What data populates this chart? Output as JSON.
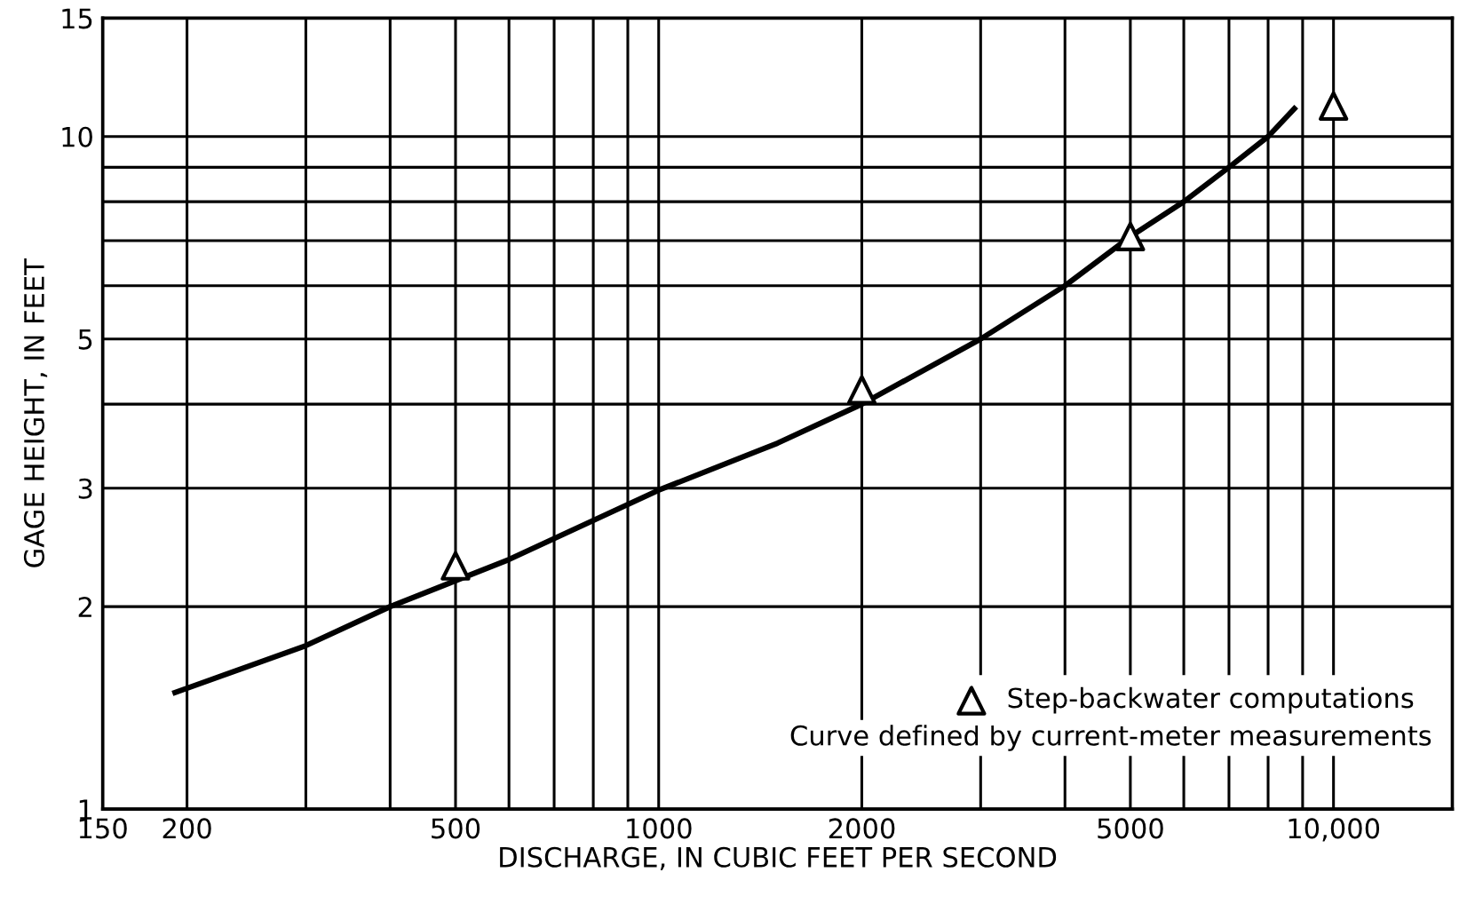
{
  "chart_data": {
    "type": "line",
    "xlabel": "DISCHARGE, IN CUBIC FEET PER SECOND",
    "ylabel": "GAGE HEIGHT, IN FEET",
    "log": "xy",
    "xlim": [
      150,
      15000
    ],
    "ylim": [
      1,
      15
    ],
    "xticks": [
      150,
      200,
      {
        "value": 300,
        "label": null
      },
      {
        "value": 400,
        "label": null
      },
      500,
      {
        "value": 600,
        "label": null
      },
      {
        "value": 700,
        "label": null
      },
      {
        "value": 800,
        "label": null
      },
      {
        "value": 900,
        "label": null
      },
      1000,
      2000,
      {
        "value": 3000,
        "label": null
      },
      {
        "value": 4000,
        "label": null
      },
      5000,
      {
        "value": 6000,
        "label": null
      },
      {
        "value": 7000,
        "label": null
      },
      {
        "value": 8000,
        "label": null
      },
      {
        "value": 9000,
        "label": null
      },
      {
        "value": 10000,
        "label": "10,000"
      }
    ],
    "yticks": [
      1,
      2,
      3,
      {
        "value": 4,
        "label": null
      },
      5,
      {
        "value": 6,
        "label": null
      },
      {
        "value": 7,
        "label": null
      },
      {
        "value": 8,
        "label": null
      },
      {
        "value": 9,
        "label": null
      },
      10,
      15
    ],
    "grid": true,
    "legend": "bottom right",
    "series": [
      {
        "color": "#000000",
        "marker": "none",
        "line_style": "solid",
        "x": [
          192,
          300,
          400,
          600,
          1000,
          1500,
          2000,
          3000,
          4000,
          5000,
          6000,
          7000,
          8000,
          8750
        ],
        "values": [
          1.49,
          1.75,
          2.0,
          2.35,
          2.98,
          3.5,
          4.0,
          5.0,
          6.0,
          7.1,
          8.0,
          9.0,
          10.0,
          11.0
        ]
      },
      {
        "type": "scatter",
        "name": "Step-backwater computations",
        "color": "#000000",
        "marker": "triangle",
        "x": [
          500,
          2000,
          5000,
          10000
        ],
        "values": [
          2.3,
          4.2,
          7.1,
          11.1
        ]
      }
    ],
    "annotations": [
      "Curve defined by current-meter measurements"
    ]
  }
}
